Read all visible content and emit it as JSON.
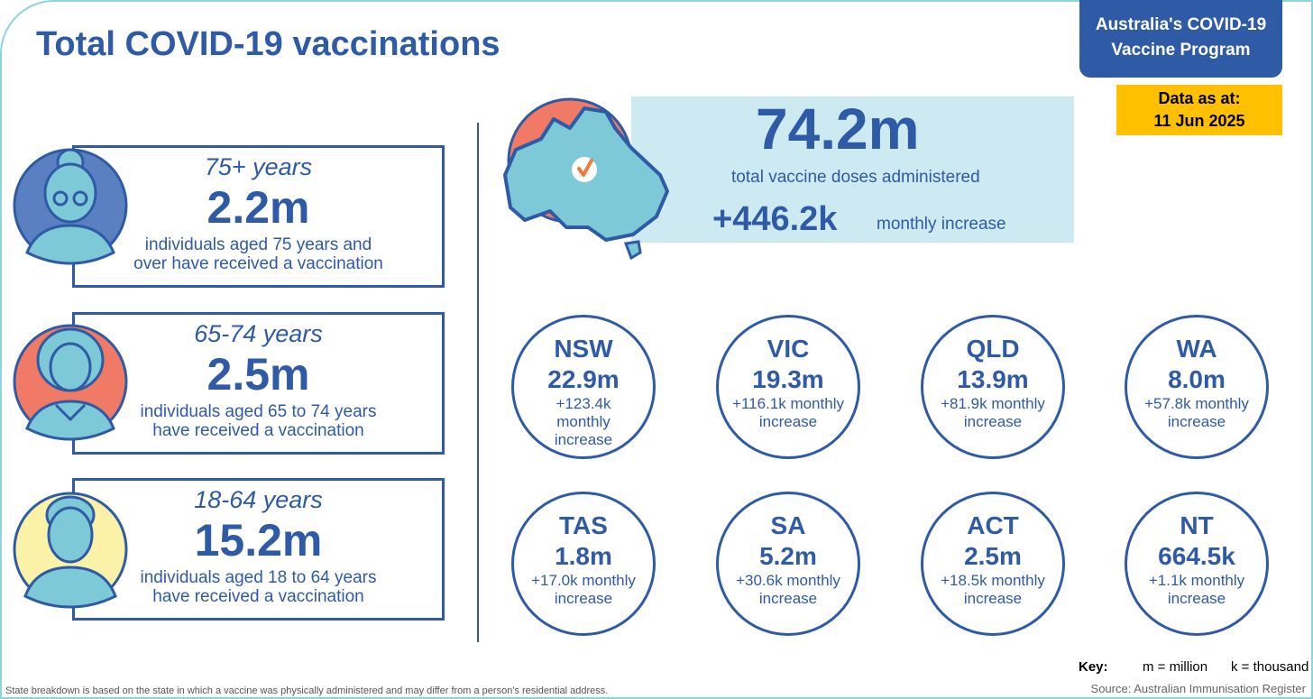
{
  "title": "Total COVID-19 vaccinations",
  "program": {
    "line1": "Australia's COVID-19",
    "line2": "Vaccine Program"
  },
  "date": {
    "label": "Data as at:",
    "value": "11 Jun 2025"
  },
  "age_groups": [
    {
      "label": "75+ years",
      "value": "2.2m",
      "desc1": "individuals aged 75 years and",
      "desc2": "over have received a vaccination",
      "color": "#5b80c2"
    },
    {
      "label": "65-74 years",
      "value": "2.5m",
      "desc1": "individuals aged 65 to 74 years",
      "desc2": "have received a vaccination",
      "color": "#f07a65"
    },
    {
      "label": "18-64 years",
      "value": "15.2m",
      "desc1": "individuals aged 18 to 64 years",
      "desc2": "have received a vaccination",
      "color": "#fbf2a8"
    }
  ],
  "total": {
    "value": "74.2m",
    "desc": "total vaccine doses administered",
    "increase": "+446.2k",
    "increase_label": "monthly increase"
  },
  "states": [
    {
      "name": "NSW",
      "value": "22.9m",
      "inc": "+123.4k monthly increase"
    },
    {
      "name": "VIC",
      "value": "19.3m",
      "inc": "+116.1k monthly increase"
    },
    {
      "name": "QLD",
      "value": "13.9m",
      "inc": "+81.9k monthly increase"
    },
    {
      "name": "WA",
      "value": "8.0m",
      "inc": "+57.8k monthly increase"
    },
    {
      "name": "TAS",
      "value": "1.8m",
      "inc": "+17.0k monthly increase"
    },
    {
      "name": "SA",
      "value": "5.2m",
      "inc": "+30.6k monthly increase"
    },
    {
      "name": "ACT",
      "value": "2.5m",
      "inc": "+18.5k monthly increase"
    },
    {
      "name": "NT",
      "value": "664.5k",
      "inc": "+1.1k monthly increase"
    }
  ],
  "key": {
    "label": "Key:",
    "m": "m = million",
    "k": "k = thousand"
  },
  "footnote": "State breakdown is based on the state in which a vaccine was physically administered and may differ from a person's residential address.",
  "source": "Source: Australian Immunisation Register",
  "colors": {
    "brand": "#2f5aa5",
    "highlight": "#ffc000",
    "band": "#cdeaf2",
    "avatar_fill": "#7ec9d8"
  }
}
